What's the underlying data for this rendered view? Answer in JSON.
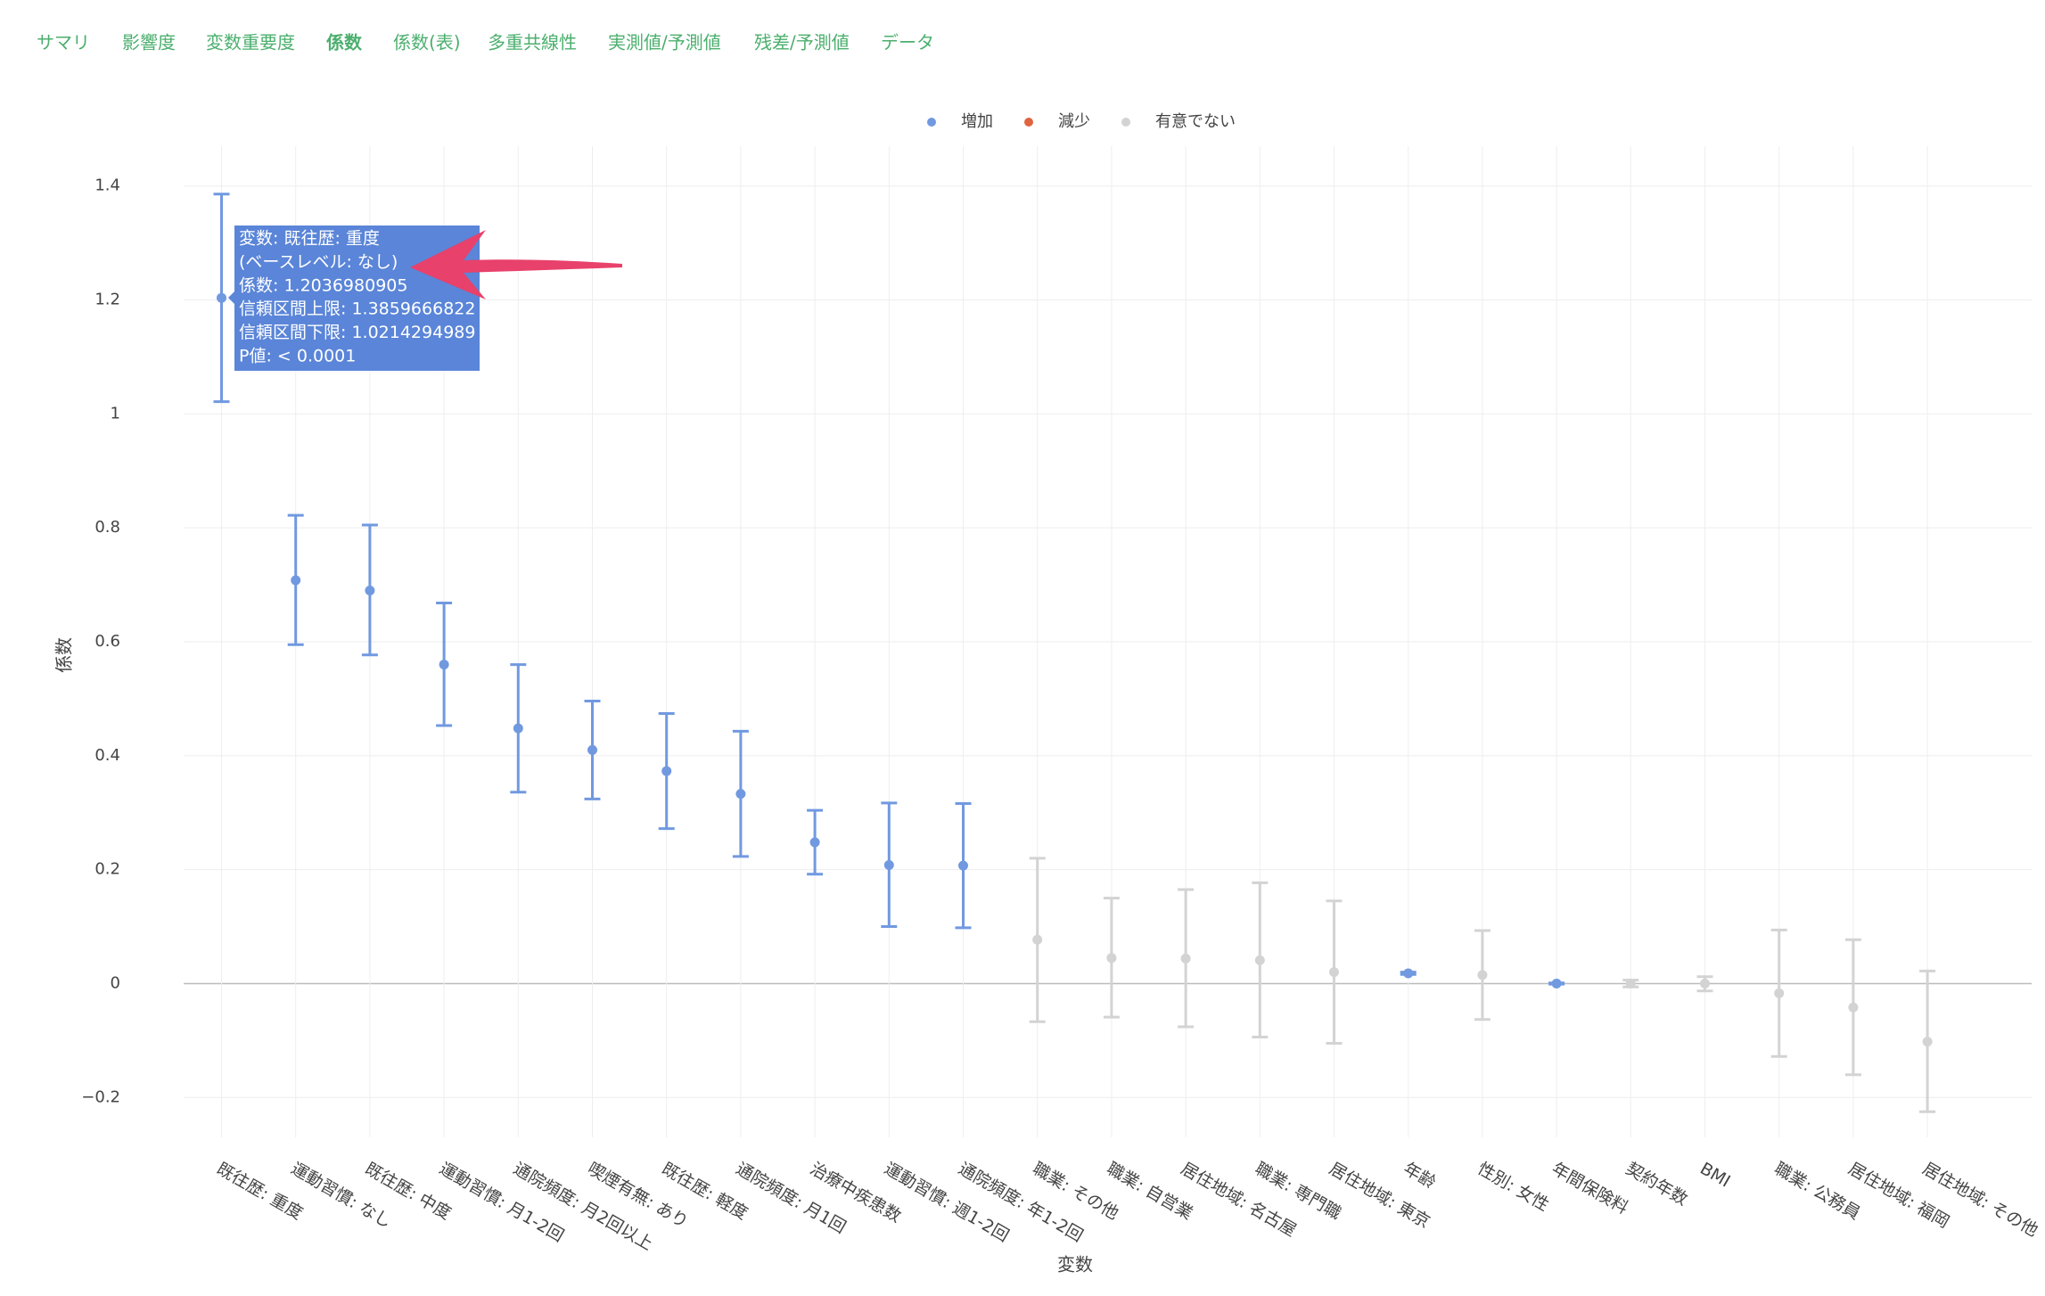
{
  "tabs": [
    "サマリ",
    "影響度",
    "変数重要度",
    "係数",
    "係数(表)",
    "多重共線性",
    "実測値/予測値",
    "残差/予測値",
    "データ"
  ],
  "chart_data": {
    "type": "errorbar",
    "x_label": "変数",
    "y_label": "係数",
    "categories": [
      "既往歴: 重度",
      "運動習慣: なし",
      "既往歴: 中度",
      "運動習慣: 月1-2回",
      "通院頻度: 月2回以上",
      "喫煙有無: あり",
      "既往歴: 軽度",
      "通院頻度: 月1回",
      "治療中疾患数",
      "運動習慣: 週1-2回",
      "通院頻度: 年1-2回",
      "職業: その他",
      "職業: 自営業",
      "居住地域: 名古屋",
      "職業: 専門職",
      "居住地域: 東京",
      "年齢",
      "性別: 女性",
      "年間保険料",
      "契約年数",
      "BMI",
      "職業: 公務員",
      "居住地域: 福岡",
      "居住地域: その他"
    ],
    "series": [
      {
        "name": "増加",
        "color": "#7199e0",
        "values": [
          1.2036980905,
          0.708,
          0.69,
          0.56,
          0.448,
          0.41,
          0.373,
          0.333,
          0.248,
          0.208,
          0.207,
          null,
          null,
          null,
          null,
          null,
          0.018,
          null,
          0.0,
          null,
          null,
          null,
          null,
          null
        ],
        "upper": [
          1.3859666822,
          0.822,
          0.805,
          0.668,
          0.56,
          0.496,
          0.474,
          0.443,
          0.304,
          0.317,
          0.316,
          null,
          null,
          null,
          null,
          null,
          0.02,
          null,
          0.001,
          null,
          null,
          null,
          null,
          null
        ],
        "lower": [
          1.0214294989,
          0.595,
          0.577,
          0.453,
          0.336,
          0.324,
          0.272,
          0.223,
          0.192,
          0.1,
          0.098,
          null,
          null,
          null,
          null,
          null,
          0.016,
          null,
          -0.001,
          null,
          null,
          null,
          null,
          null
        ]
      },
      {
        "name": "減少",
        "color": "#e0643f",
        "values": [
          null,
          null,
          null,
          null,
          null,
          null,
          null,
          null,
          null,
          null,
          null,
          null,
          null,
          null,
          null,
          null,
          null,
          null,
          null,
          null,
          null,
          null,
          null,
          null
        ],
        "upper": [
          null,
          null,
          null,
          null,
          null,
          null,
          null,
          null,
          null,
          null,
          null,
          null,
          null,
          null,
          null,
          null,
          null,
          null,
          null,
          null,
          null,
          null,
          null,
          null
        ],
        "lower": [
          null,
          null,
          null,
          null,
          null,
          null,
          null,
          null,
          null,
          null,
          null,
          null,
          null,
          null,
          null,
          null,
          null,
          null,
          null,
          null,
          null,
          null,
          null,
          null
        ]
      },
      {
        "name": "有意でない",
        "color": "#d3d3d3",
        "values": [
          null,
          null,
          null,
          null,
          null,
          null,
          null,
          null,
          null,
          null,
          null,
          0.077,
          0.045,
          0.044,
          0.041,
          0.02,
          null,
          0.015,
          null,
          0.0,
          0.0,
          -0.017,
          -0.042,
          -0.102
        ],
        "upper": [
          null,
          null,
          null,
          null,
          null,
          null,
          null,
          null,
          null,
          null,
          null,
          0.22,
          0.15,
          0.165,
          0.177,
          0.145,
          null,
          0.093,
          null,
          0.006,
          0.012,
          0.094,
          0.077,
          0.022
        ],
        "lower": [
          null,
          null,
          null,
          null,
          null,
          null,
          null,
          null,
          null,
          null,
          null,
          -0.067,
          -0.059,
          -0.076,
          -0.094,
          -0.105,
          null,
          -0.063,
          null,
          -0.006,
          -0.013,
          -0.128,
          -0.16,
          -0.225
        ]
      }
    ],
    "ylim": [
      -0.27,
      1.47
    ],
    "yticks": [
      {
        "value": -0.2,
        "label": "−0.2"
      },
      0,
      0.2,
      0.4,
      0.6,
      0.8,
      1,
      1.2,
      1.4
    ],
    "grid": true,
    "tooltip": [
      "変数: 既往歴: 重度",
      "(ベースレベル: なし)",
      "係数: 1.2036980905",
      "信頼区間上限: 1.3859666822",
      "信頼区間下限: 1.0214294989",
      "P値: < 0.0001"
    ]
  }
}
